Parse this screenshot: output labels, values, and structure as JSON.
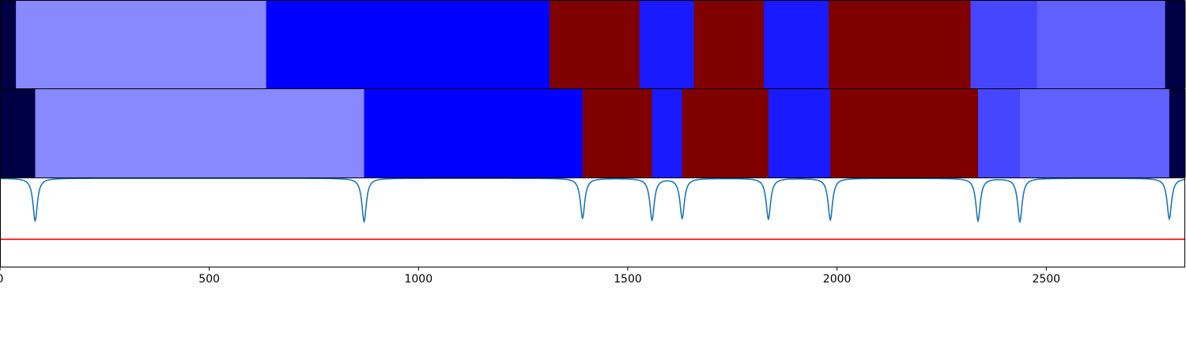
{
  "chart_data": [
    {
      "type": "segment-strip",
      "name": "Segmentation track 1",
      "xlim": [
        0,
        2832
      ],
      "segments": [
        {
          "start": 0,
          "end": 38,
          "color": "#000044"
        },
        {
          "start": 38,
          "end": 636,
          "color": "#8888ff"
        },
        {
          "start": 636,
          "end": 1313,
          "color": "#0000ff"
        },
        {
          "start": 1313,
          "end": 1528,
          "color": "#800000"
        },
        {
          "start": 1528,
          "end": 1658,
          "color": "#1a1aff"
        },
        {
          "start": 1658,
          "end": 1825,
          "color": "#800000"
        },
        {
          "start": 1825,
          "end": 1980,
          "color": "#1a1aff"
        },
        {
          "start": 1980,
          "end": 2319,
          "color": "#800000"
        },
        {
          "start": 2319,
          "end": 2478,
          "color": "#4646ff"
        },
        {
          "start": 2478,
          "end": 2784,
          "color": "#6060ff"
        },
        {
          "start": 2784,
          "end": 2832,
          "color": "#000044"
        }
      ]
    },
    {
      "type": "segment-strip",
      "name": "Segmentation track 2",
      "xlim": [
        0,
        2832
      ],
      "segments": [
        {
          "start": 0,
          "end": 84,
          "color": "#000044"
        },
        {
          "start": 84,
          "end": 870,
          "color": "#8888ff"
        },
        {
          "start": 870,
          "end": 1392,
          "color": "#0000ff"
        },
        {
          "start": 1392,
          "end": 1558,
          "color": "#800000"
        },
        {
          "start": 1558,
          "end": 1630,
          "color": "#1a1aff"
        },
        {
          "start": 1630,
          "end": 1836,
          "color": "#800000"
        },
        {
          "start": 1836,
          "end": 1984,
          "color": "#1a1aff"
        },
        {
          "start": 1984,
          "end": 2337,
          "color": "#800000"
        },
        {
          "start": 2337,
          "end": 2437,
          "color": "#4646ff"
        },
        {
          "start": 2437,
          "end": 2794,
          "color": "#6060ff"
        },
        {
          "start": 2794,
          "end": 2832,
          "color": "#000044"
        }
      ]
    },
    {
      "type": "line",
      "name": "Boundary signal",
      "xlim": [
        0,
        2832
      ],
      "ylim": [
        0,
        1
      ],
      "baseline": 1.0,
      "threshold": 0.31,
      "threshold_color": "#ff0000",
      "line_color": "#1f77b4",
      "dips": [
        {
          "x": 84,
          "depth": 0.48
        },
        {
          "x": 870,
          "depth": 0.49
        },
        {
          "x": 1392,
          "depth": 0.45
        },
        {
          "x": 1558,
          "depth": 0.47
        },
        {
          "x": 1630,
          "depth": 0.45
        },
        {
          "x": 1836,
          "depth": 0.46
        },
        {
          "x": 1984,
          "depth": 0.47
        },
        {
          "x": 2337,
          "depth": 0.48
        },
        {
          "x": 2437,
          "depth": 0.49
        },
        {
          "x": 2794,
          "depth": 0.46
        }
      ],
      "xticks": [
        0,
        500,
        1000,
        1500,
        2000,
        2500
      ],
      "xtick_labels": [
        "0",
        "500",
        "1000",
        "1500",
        "2000",
        "2500"
      ]
    }
  ]
}
